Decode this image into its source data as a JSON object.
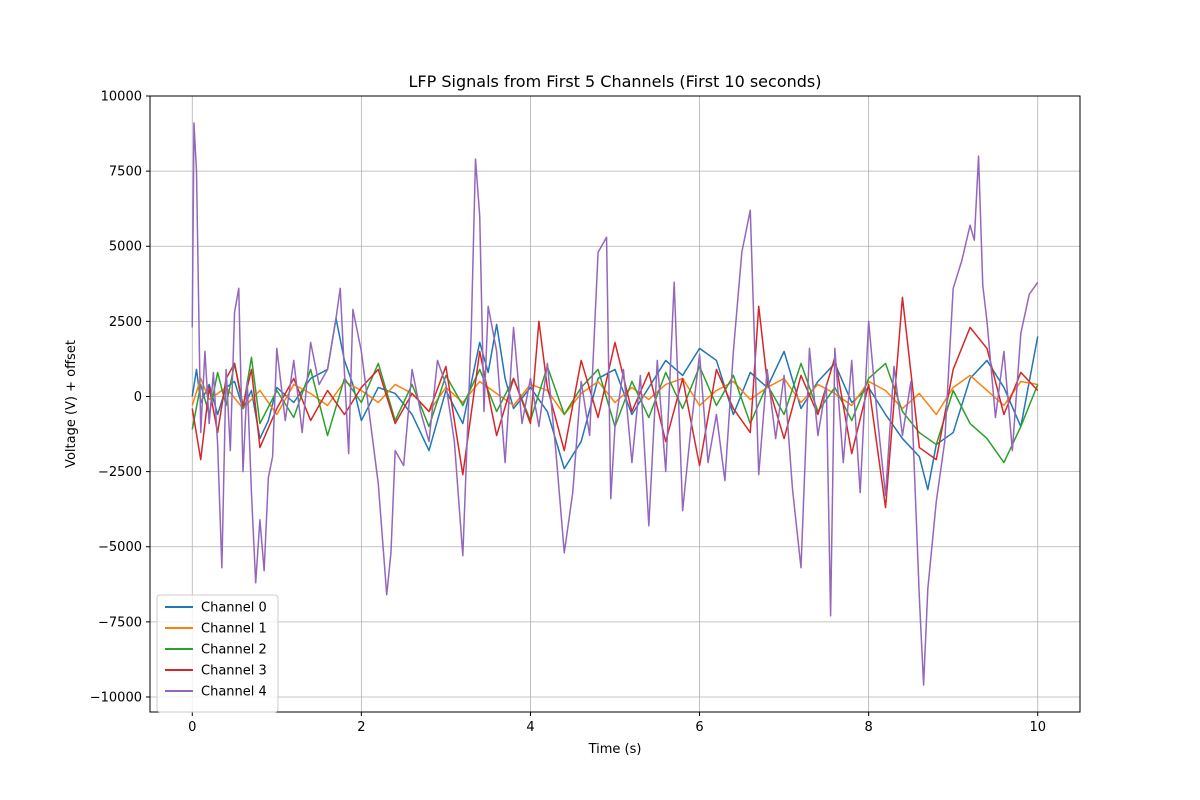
{
  "chart_data": {
    "type": "line",
    "title": "LFP Signals from First 5 Channels (First 10 seconds)",
    "xlabel": "Time (s)",
    "ylabel": "Voltage (V) + offset",
    "xlim": [
      -0.5,
      10.5
    ],
    "ylim": [
      -10500,
      10000
    ],
    "xticks": [
      0,
      2,
      4,
      6,
      8,
      10
    ],
    "xtick_labels": [
      "0",
      "2",
      "4",
      "6",
      "8",
      "10"
    ],
    "yticks": [
      -10000,
      -7500,
      -5000,
      -2500,
      0,
      2500,
      5000,
      7500,
      10000
    ],
    "ytick_labels": [
      "−10000",
      "−7500",
      "−5000",
      "−2500",
      "0",
      "2500",
      "5000",
      "7500",
      "10000"
    ],
    "grid": true,
    "legend_position": "lower-left",
    "series": [
      {
        "name": "Channel 0",
        "color": "#1f77b4",
        "x": [
          0,
          0.05,
          0.1,
          0.2,
          0.3,
          0.4,
          0.5,
          0.6,
          0.7,
          0.8,
          0.9,
          1.0,
          1.2,
          1.4,
          1.6,
          1.7,
          1.8,
          1.9,
          2.0,
          2.2,
          2.4,
          2.6,
          2.8,
          3.0,
          3.2,
          3.4,
          3.5,
          3.6,
          3.7,
          3.8,
          4.0,
          4.2,
          4.4,
          4.6,
          4.8,
          5.0,
          5.2,
          5.4,
          5.6,
          5.8,
          6.0,
          6.2,
          6.4,
          6.6,
          6.8,
          7.0,
          7.2,
          7.4,
          7.6,
          7.8,
          8.0,
          8.2,
          8.4,
          8.6,
          8.7,
          8.8,
          9.0,
          9.2,
          9.4,
          9.6,
          9.8,
          10.0
        ],
        "y": [
          0,
          900,
          -200,
          400,
          -600,
          300,
          500,
          -400,
          200,
          -1400,
          -800,
          300,
          -200,
          600,
          900,
          2600,
          1200,
          400,
          -800,
          300,
          100,
          -600,
          -1800,
          200,
          -900,
          1800,
          800,
          2400,
          600,
          -400,
          300,
          -500,
          -2400,
          -1500,
          600,
          900,
          -600,
          300,
          1200,
          700,
          1600,
          1200,
          -600,
          800,
          300,
          1500,
          -400,
          500,
          1100,
          -200,
          300,
          -600,
          -1400,
          -2000,
          -3100,
          -1600,
          -1200,
          600,
          1200,
          300,
          -1000,
          2000
        ]
      },
      {
        "name": "Channel 1",
        "color": "#ff7f0e",
        "x": [
          0,
          0.1,
          0.2,
          0.4,
          0.6,
          0.8,
          1.0,
          1.2,
          1.4,
          1.6,
          1.8,
          2.0,
          2.2,
          2.4,
          2.6,
          2.8,
          3.0,
          3.2,
          3.4,
          3.6,
          3.8,
          4.0,
          4.2,
          4.4,
          4.6,
          4.8,
          5.0,
          5.2,
          5.4,
          5.6,
          5.8,
          6.0,
          6.2,
          6.4,
          6.6,
          6.8,
          7.0,
          7.2,
          7.4,
          7.6,
          7.8,
          8.0,
          8.2,
          8.4,
          8.6,
          8.8,
          9.0,
          9.2,
          9.4,
          9.6,
          9.8,
          10.0
        ],
        "y": [
          -300,
          600,
          -100,
          300,
          -400,
          200,
          -600,
          400,
          100,
          -300,
          500,
          200,
          -200,
          400,
          100,
          -500,
          300,
          -200,
          500,
          100,
          -300,
          400,
          200,
          -600,
          100,
          500,
          -200,
          300,
          -100,
          400,
          600,
          -300,
          200,
          500,
          -100,
          300,
          600,
          -200,
          400,
          100,
          -300,
          500,
          200,
          -400,
          100,
          -600,
          300,
          700,
          200,
          -300,
          500,
          400
        ]
      },
      {
        "name": "Channel 2",
        "color": "#2ca02c",
        "x": [
          0,
          0.1,
          0.2,
          0.3,
          0.4,
          0.5,
          0.6,
          0.7,
          0.8,
          1.0,
          1.2,
          1.4,
          1.6,
          1.8,
          2.0,
          2.2,
          2.4,
          2.6,
          2.8,
          3.0,
          3.2,
          3.4,
          3.6,
          3.8,
          4.0,
          4.2,
          4.4,
          4.6,
          4.8,
          5.0,
          5.2,
          5.4,
          5.6,
          5.8,
          6.0,
          6.2,
          6.4,
          6.6,
          6.8,
          7.0,
          7.2,
          7.4,
          7.6,
          7.8,
          8.0,
          8.2,
          8.4,
          8.6,
          8.8,
          9.0,
          9.2,
          9.4,
          9.6,
          9.8,
          10.0
        ],
        "y": [
          -1100,
          400,
          -600,
          800,
          -300,
          1100,
          -400,
          1300,
          -900,
          200,
          -700,
          900,
          -1300,
          600,
          -200,
          1100,
          -800,
          400,
          -1000,
          700,
          -300,
          900,
          -500,
          600,
          -800,
          1000,
          -600,
          300,
          900,
          -1000,
          500,
          -700,
          800,
          -400,
          1000,
          -300,
          700,
          -900,
          400,
          -600,
          1100,
          -500,
          300,
          -800,
          600,
          1100,
          -500,
          -1200,
          -1600,
          200,
          -900,
          -1400,
          -2200,
          -1000,
          400
        ]
      },
      {
        "name": "Channel 3",
        "color": "#d62728",
        "x": [
          0,
          0.1,
          0.2,
          0.3,
          0.4,
          0.5,
          0.6,
          0.7,
          0.8,
          1.0,
          1.2,
          1.4,
          1.6,
          1.8,
          2.0,
          2.2,
          2.4,
          2.6,
          2.8,
          3.0,
          3.2,
          3.4,
          3.6,
          3.8,
          4.0,
          4.1,
          4.2,
          4.4,
          4.6,
          4.8,
          5.0,
          5.2,
          5.4,
          5.6,
          5.8,
          6.0,
          6.2,
          6.4,
          6.6,
          6.7,
          6.8,
          7.0,
          7.2,
          7.4,
          7.6,
          7.8,
          8.0,
          8.2,
          8.4,
          8.6,
          8.8,
          9.0,
          9.2,
          9.4,
          9.6,
          9.8,
          10.0
        ],
        "y": [
          -400,
          -2100,
          300,
          -1200,
          600,
          1100,
          -300,
          900,
          -1700,
          -400,
          600,
          -800,
          200,
          -600,
          300,
          900,
          -900,
          100,
          -500,
          1000,
          -2600,
          1500,
          -1300,
          600,
          -900,
          2500,
          300,
          -1800,
          1200,
          -700,
          1800,
          -500,
          800,
          -1500,
          600,
          -2300,
          900,
          -400,
          -1200,
          3000,
          500,
          -1400,
          700,
          -600,
          1300,
          -1900,
          400,
          -3700,
          3300,
          -1700,
          -2100,
          900,
          2300,
          1600,
          -600,
          800,
          200
        ]
      },
      {
        "name": "Channel 4",
        "color": "#9467bd",
        "x": [
          0,
          0.02,
          0.05,
          0.1,
          0.15,
          0.2,
          0.25,
          0.3,
          0.35,
          0.4,
          0.45,
          0.5,
          0.55,
          0.6,
          0.65,
          0.7,
          0.75,
          0.8,
          0.85,
          0.9,
          0.95,
          1.0,
          1.1,
          1.2,
          1.3,
          1.4,
          1.5,
          1.6,
          1.7,
          1.75,
          1.8,
          1.85,
          1.9,
          2.0,
          2.1,
          2.2,
          2.3,
          2.35,
          2.4,
          2.5,
          2.6,
          2.7,
          2.8,
          2.9,
          3.0,
          3.1,
          3.2,
          3.3,
          3.35,
          3.4,
          3.45,
          3.5,
          3.6,
          3.7,
          3.8,
          3.9,
          4.0,
          4.1,
          4.2,
          4.3,
          4.4,
          4.5,
          4.6,
          4.7,
          4.8,
          4.9,
          4.95,
          5.0,
          5.1,
          5.2,
          5.3,
          5.4,
          5.5,
          5.6,
          5.7,
          5.8,
          5.9,
          6.0,
          6.1,
          6.2,
          6.3,
          6.4,
          6.5,
          6.55,
          6.6,
          6.65,
          6.7,
          6.8,
          6.9,
          7.0,
          7.1,
          7.2,
          7.3,
          7.4,
          7.5,
          7.55,
          7.6,
          7.7,
          7.8,
          7.9,
          8.0,
          8.1,
          8.2,
          8.3,
          8.4,
          8.5,
          8.6,
          8.65,
          8.7,
          8.8,
          8.9,
          9.0,
          9.1,
          9.2,
          9.25,
          9.3,
          9.35,
          9.4,
          9.5,
          9.6,
          9.7,
          9.8,
          9.9,
          10.0
        ],
        "y": [
          2300,
          9100,
          7500,
          -1200,
          1500,
          -900,
          800,
          -1600,
          -5700,
          900,
          -1800,
          2800,
          3600,
          -2500,
          500,
          -3200,
          -6200,
          -4100,
          -5800,
          -2700,
          -2000,
          1600,
          -800,
          1200,
          -1200,
          1800,
          400,
          900,
          2600,
          3600,
          800,
          -1900,
          2900,
          1500,
          -700,
          -2900,
          -6600,
          -5200,
          -1800,
          -2300,
          900,
          -500,
          -1500,
          1200,
          400,
          -1500,
          -5300,
          2200,
          7900,
          6000,
          -500,
          3000,
          1500,
          -2200,
          2300,
          -900,
          600,
          -1000,
          1100,
          -1800,
          -5200,
          -3200,
          500,
          -1300,
          4800,
          5300,
          -3400,
          -1000,
          900,
          -2200,
          700,
          -4300,
          1200,
          -2500,
          3800,
          -3800,
          -1000,
          1400,
          -2200,
          -600,
          -2800,
          1500,
          4800,
          5500,
          6200,
          1800,
          -2600,
          900,
          -1400,
          700,
          -3100,
          -5700,
          1600,
          -1300,
          400,
          -7300,
          1600,
          -2200,
          1200,
          -3200,
          2500,
          -600,
          -3300,
          1000,
          -1300,
          500,
          -6700,
          -9600,
          -6400,
          -3500,
          -1500,
          3600,
          4500,
          5700,
          5200,
          8000,
          3700,
          2500,
          -700,
          1500,
          -1800,
          2100,
          3400,
          3800
        ]
      }
    ]
  }
}
